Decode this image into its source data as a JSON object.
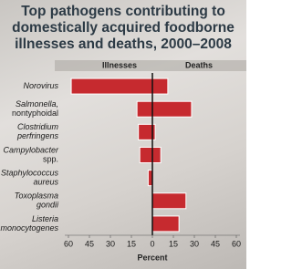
{
  "chart_data": {
    "type": "diverging-bar",
    "title": "Top pathogens contributing to domestically acquired foodborne illnesses and deaths, 2000–2008",
    "categories": [
      [
        "Norovirus"
      ],
      [
        "Salmonella,",
        "nontyphoidal"
      ],
      [
        "Clostridium",
        "perfringens"
      ],
      [
        "Campylobacter",
        "spp."
      ],
      [
        "Staphylococcus",
        "aureus"
      ],
      [
        "Toxoplasma",
        "gondii"
      ],
      [
        "Listeria",
        "monocytogenes"
      ]
    ],
    "series": [
      {
        "name": "Illnesses",
        "side": "left",
        "color": "#c62a2f",
        "values": [
          58,
          11,
          10,
          9,
          3,
          0,
          0
        ]
      },
      {
        "name": "Deaths",
        "side": "right",
        "color": "#c62a2f",
        "values": [
          11,
          28,
          2,
          6,
          0,
          24,
          19
        ]
      }
    ],
    "x_label": "Percent",
    "xlim": [
      -60,
      60
    ],
    "xticks": [
      {
        "value": -60,
        "label": "60"
      },
      {
        "value": -45,
        "label": "45"
      },
      {
        "value": -30,
        "label": "30"
      },
      {
        "value": -15,
        "label": "15"
      },
      0,
      15,
      30,
      45,
      60
    ]
  }
}
